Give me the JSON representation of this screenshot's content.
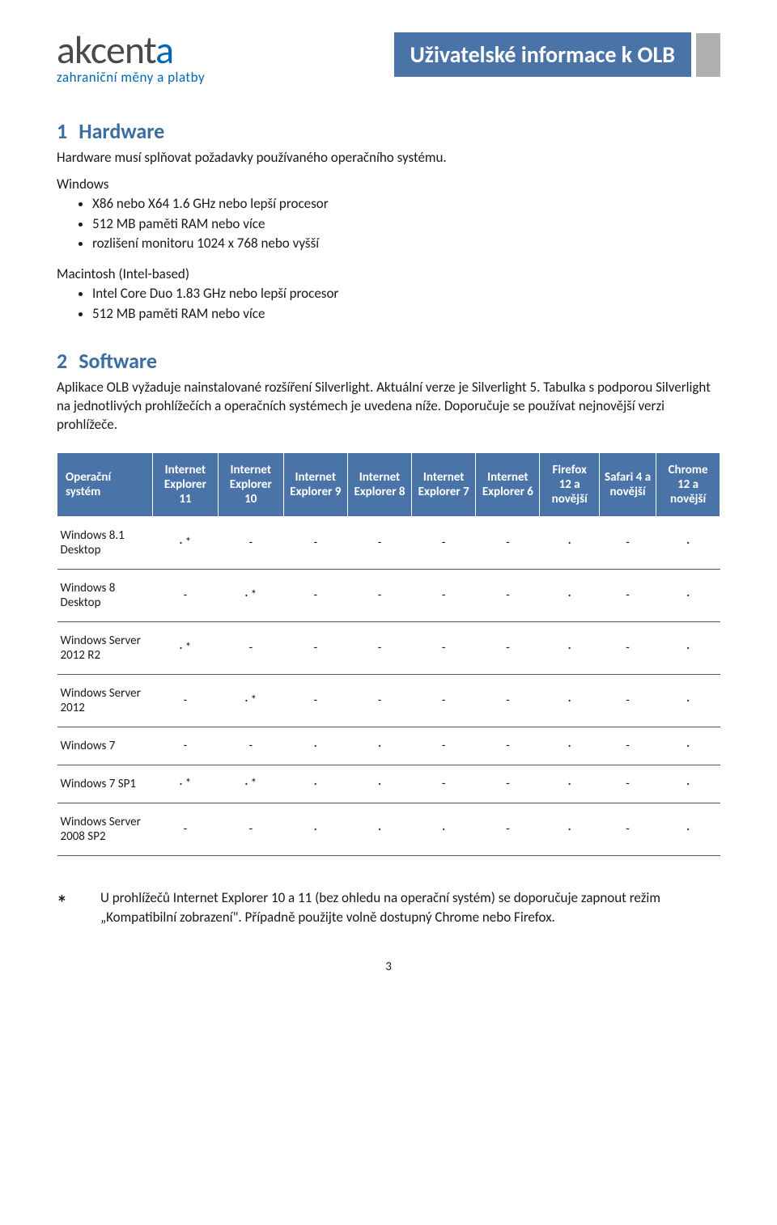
{
  "logo": {
    "main_dark": "akcent",
    "main_accent": "a",
    "sub": "zahraniční měny a platby"
  },
  "title_bar": "Uživatelské informace k OLB",
  "section1": {
    "num": "1",
    "title": "Hardware",
    "intro": "Hardware musí splňovat požadavky používaného operačního systému.",
    "win_label": "Windows",
    "win_bullets": [
      "X86 nebo X64 1.6 GHz nebo lepší procesor",
      "512 MB paměti RAM nebo více",
      "rozlišení monitoru 1024 x 768 nebo vyšší"
    ],
    "mac_label": "Macintosh (Intel-based)",
    "mac_bullets": [
      "Intel Core Duo 1.83 GHz nebo lepší procesor",
      "512 MB paměti RAM nebo více"
    ]
  },
  "section2": {
    "num": "2",
    "title": "Software",
    "intro": "Aplikace OLB vyžaduje nainstalované rozšíření Silverlight. Aktuální verze je Silverlight 5. Tabulka s podporou Silverlight na jednotlivých prohlížečích a operačních systémech je uvedena níže. Doporučuje se používat nejnovější verzi prohlížeče."
  },
  "table": {
    "header_corner": "Operační systém",
    "columns": [
      "Internet Explorer 11",
      "Internet Explorer 10",
      "Internet Explorer 9",
      "Internet Explorer 8",
      "Internet Explorer 7",
      "Internet Explorer 6",
      "Firefox 12 a novější",
      "Safari 4 a novější",
      "Chrome 12 a novější"
    ],
    "rows": [
      {
        "label": "Windows 8.1 Desktop",
        "cells": [
          "· *",
          "-",
          "-",
          "-",
          "-",
          "-",
          "·",
          "-",
          "·"
        ]
      },
      {
        "label": "Windows 8 Desktop",
        "cells": [
          "-",
          "· *",
          "-",
          "-",
          "-",
          "-",
          "·",
          "-",
          "·"
        ]
      },
      {
        "label": "Windows Server 2012 R2",
        "cells": [
          "· *",
          "-",
          "-",
          "-",
          "-",
          "-",
          "·",
          "-",
          "·"
        ]
      },
      {
        "label": "Windows Server 2012",
        "cells": [
          "-",
          "· *",
          "-",
          "-",
          "-",
          "-",
          "·",
          "-",
          "·"
        ]
      },
      {
        "label": "Windows 7",
        "cells": [
          "-",
          "-",
          "·",
          "·",
          "-",
          "-",
          "·",
          "-",
          "·"
        ]
      },
      {
        "label": "Windows 7 SP1",
        "cells": [
          "· *",
          "· *",
          "·",
          "·",
          "-",
          "-",
          "·",
          "-",
          "·"
        ]
      },
      {
        "label": "Windows Server 2008 SP2",
        "cells": [
          "-",
          "-",
          "·",
          "·",
          "·",
          "-",
          "·",
          "-",
          "·"
        ]
      }
    ]
  },
  "footnote": {
    "star": "*",
    "text": "U prohlížečů Internet Explorer 10 a 11 (bez ohledu na operační systém) se doporučuje zapnout režim „Kompatibilní zobrazení\". Případně použijte volně dostupný Chrome nebo Firefox."
  },
  "page_number": "3",
  "colors": {
    "brand_blue": "#0066b3",
    "header_bg": "#4a73a8",
    "grey_tab": "#b0b0b0",
    "text": "#191919",
    "border": "#555555"
  }
}
